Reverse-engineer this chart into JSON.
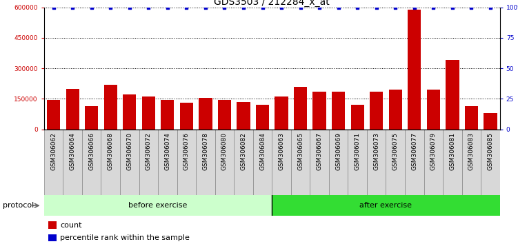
{
  "title": "GDS3503 / 212284_x_at",
  "categories": [
    "GSM306062",
    "GSM306064",
    "GSM306066",
    "GSM306068",
    "GSM306070",
    "GSM306072",
    "GSM306074",
    "GSM306076",
    "GSM306078",
    "GSM306080",
    "GSM306082",
    "GSM306084",
    "GSM306063",
    "GSM306065",
    "GSM306067",
    "GSM306069",
    "GSM306071",
    "GSM306073",
    "GSM306075",
    "GSM306077",
    "GSM306079",
    "GSM306081",
    "GSM306083",
    "GSM306085"
  ],
  "counts": [
    145000,
    200000,
    115000,
    220000,
    170000,
    160000,
    145000,
    130000,
    155000,
    145000,
    135000,
    120000,
    160000,
    210000,
    185000,
    185000,
    120000,
    185000,
    195000,
    590000,
    195000,
    340000,
    115000,
    80000
  ],
  "percentile_ranks": [
    100,
    100,
    100,
    100,
    100,
    100,
    100,
    100,
    100,
    100,
    100,
    100,
    100,
    100,
    100,
    100,
    100,
    100,
    100,
    100,
    100,
    100,
    100,
    100
  ],
  "bar_color": "#cc0000",
  "dot_color": "#0000cc",
  "ylim_left": [
    0,
    600000
  ],
  "ylim_right": [
    0,
    100
  ],
  "yticks_left": [
    0,
    150000,
    300000,
    450000,
    600000
  ],
  "yticks_right": [
    0,
    25,
    50,
    75,
    100
  ],
  "ytick_labels_left": [
    "0",
    "150000",
    "300000",
    "450000",
    "600000"
  ],
  "ytick_labels_right": [
    "0",
    "25",
    "50",
    "75",
    "100%"
  ],
  "grid_lines": [
    150000,
    300000,
    450000,
    600000
  ],
  "before_count": 12,
  "after_count": 12,
  "before_label": "before exercise",
  "after_label": "after exercise",
  "protocol_label": "protocol",
  "legend_count_label": "count",
  "legend_pct_label": "percentile rank within the sample",
  "before_color": "#ccffcc",
  "after_color": "#33dd33",
  "xtick_bg_color": "#d8d8d8",
  "title_fontsize": 10,
  "tick_fontsize": 6.5,
  "label_fontsize": 8,
  "background_color": "#ffffff"
}
